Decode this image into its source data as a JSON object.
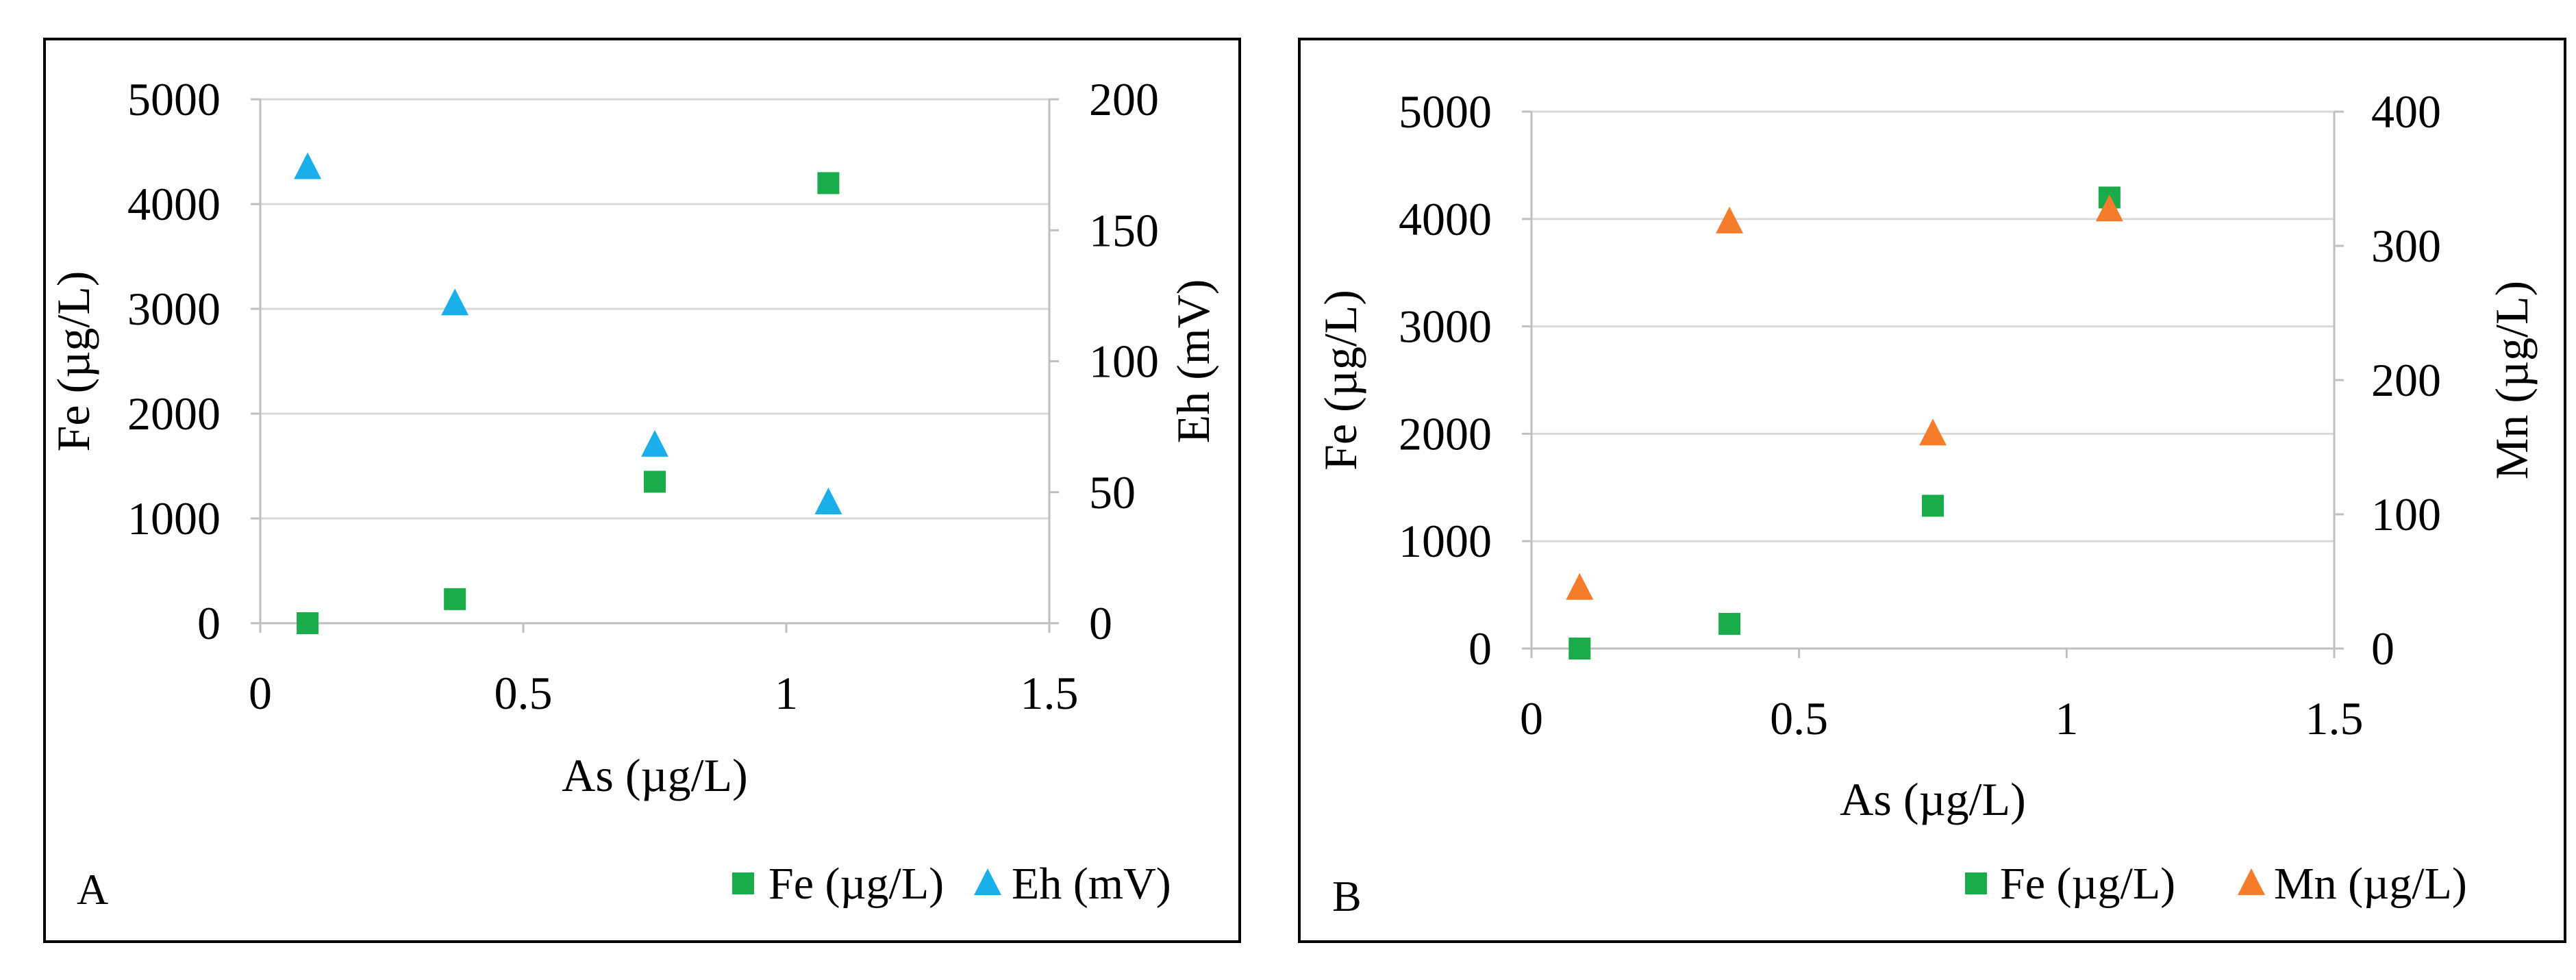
{
  "chart_data": [
    {
      "type": "scatter",
      "panel_label": "A",
      "xlabel": "As (µg/L)",
      "xlim": [
        0,
        1.5
      ],
      "xticks": [
        "0",
        "0.5",
        "1",
        "1.5"
      ],
      "xtick_values": [
        0,
        0.5,
        1,
        1.5
      ],
      "y_left": {
        "label": "Fe (µg/L)",
        "lim": [
          0,
          5000
        ],
        "ticks": [
          "0",
          "1000",
          "2000",
          "3000",
          "4000",
          "5000"
        ],
        "tick_values": [
          0,
          1000,
          2000,
          3000,
          4000,
          5000
        ]
      },
      "y_right": {
        "label": "Eh (mV)",
        "lim": [
          0,
          200
        ],
        "ticks": [
          "0",
          "50",
          "100",
          "150",
          "200"
        ],
        "tick_values": [
          0,
          50,
          100,
          150,
          200
        ]
      },
      "grid": true,
      "legend_position": "bottom-right",
      "series": [
        {
          "name": "Fe (µg/L)",
          "axis": "left",
          "marker": "square",
          "color": "#1aab4b",
          "x": [
            0.09,
            0.37,
            0.75,
            1.08
          ],
          "y": [
            0,
            230,
            1350,
            4200
          ]
        },
        {
          "name": "Eh (mV)",
          "axis": "right",
          "marker": "triangle",
          "color": "#1aaeeb",
          "x": [
            0.09,
            0.37,
            0.75,
            1.08
          ],
          "y": [
            174,
            122,
            68,
            46
          ]
        }
      ]
    },
    {
      "type": "scatter",
      "panel_label": "B",
      "xlabel": "As (µg/L)",
      "xlim": [
        0,
        1.5
      ],
      "xticks": [
        "0",
        "0.5",
        "1",
        "1.5"
      ],
      "xtick_values": [
        0,
        0.5,
        1,
        1.5
      ],
      "y_left": {
        "label": "Fe (µg/L)",
        "lim": [
          0,
          5000
        ],
        "ticks": [
          "0",
          "1000",
          "2000",
          "3000",
          "4000",
          "5000"
        ],
        "tick_values": [
          0,
          1000,
          2000,
          3000,
          4000,
          5000
        ]
      },
      "y_right": {
        "label": "Mn (µg/L)",
        "lim": [
          0,
          400
        ],
        "ticks": [
          "0",
          "100",
          "200",
          "300",
          "400"
        ],
        "tick_values": [
          0,
          100,
          200,
          300,
          400
        ]
      },
      "grid": true,
      "legend_position": "bottom-right",
      "series": [
        {
          "name": "Fe (µg/L)",
          "axis": "left",
          "marker": "square",
          "color": "#1aab4b",
          "x": [
            0.09,
            0.37,
            0.75,
            1.08
          ],
          "y": [
            0,
            230,
            1330,
            4200
          ]
        },
        {
          "name": "Mn (µg/L)",
          "axis": "right",
          "marker": "triangle",
          "color": "#f47c2a",
          "x": [
            0.09,
            0.37,
            0.75,
            1.08
          ],
          "y": [
            45,
            318,
            160,
            327
          ]
        }
      ]
    }
  ]
}
